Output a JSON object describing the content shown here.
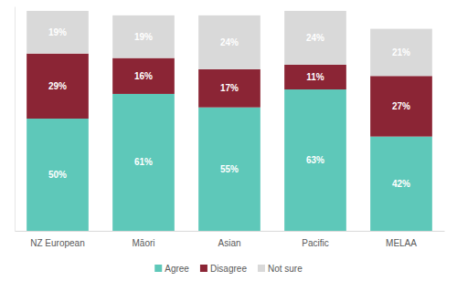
{
  "chart_data": {
    "type": "bar",
    "stacked": true,
    "data_labels": true,
    "tick_labels": "x",
    "legend": "bottom",
    "categories": [
      "NZ European",
      "Māori",
      "Asian",
      "Pacific",
      "MELAA"
    ],
    "ylim": [
      0,
      100
    ],
    "yticks": [],
    "series": [
      {
        "name": "Agree",
        "color": "#5ec8b9",
        "values": [
          50,
          61,
          55,
          63,
          42
        ],
        "value_labels": [
          "50%",
          "61%",
          "55%",
          "63%",
          "42%"
        ]
      },
      {
        "name": "Disagree",
        "color": "#8b2535",
        "values": [
          29,
          16,
          17,
          11,
          27
        ],
        "value_labels": [
          "29%",
          "16%",
          "17%",
          "11%",
          "27%"
        ]
      },
      {
        "name": "Not sure",
        "color": "#d9d9d9",
        "values": [
          19,
          19,
          24,
          24,
          21
        ],
        "value_labels": [
          "19%",
          "19%",
          "24%",
          "24%",
          "21%"
        ]
      }
    ]
  }
}
